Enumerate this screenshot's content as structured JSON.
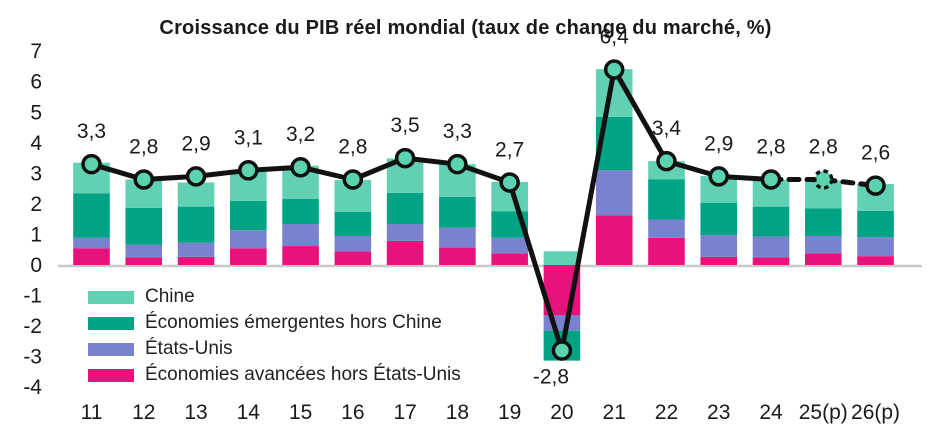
{
  "title": "Croissance du PIB réel mondial (taux de change du marché, %)",
  "colors": {
    "chine": "#62D0B2",
    "emergentes_hors_chine": "#00A383",
    "etats_unis": "#7A81CF",
    "avancees_hors_etats_unis": "#E8127D",
    "line": "#111111",
    "marker_fill": "#5BD2B0",
    "zero_axis": "#c9c9c9",
    "text": "#1a1a1a"
  },
  "chart_data": {
    "type": "bar",
    "subtype": "stacked-bar-with-line-overlay",
    "title": "Croissance du PIB réel mondial (taux de change du marché, %)",
    "xlabel": "",
    "ylabel": "",
    "ylim": [
      -4,
      7
    ],
    "y_ticks": [
      7,
      6,
      5,
      4,
      3,
      2,
      1,
      0,
      -1,
      -2,
      -3,
      -4
    ],
    "grid": false,
    "legend_position": "inside-bottom-left",
    "categories": [
      "11",
      "12",
      "13",
      "14",
      "15",
      "16",
      "17",
      "18",
      "19",
      "20",
      "21",
      "22",
      "23",
      "24",
      "25(p)",
      "26(p)"
    ],
    "line": {
      "name": "Croissance du PIB réel mondial",
      "values": [
        3.3,
        2.8,
        2.9,
        3.1,
        3.2,
        2.8,
        3.5,
        3.3,
        2.7,
        -2.8,
        6.4,
        3.4,
        2.9,
        2.8,
        2.8,
        2.6
      ],
      "labels": [
        "3,3",
        "2,8",
        "2,9",
        "3,1",
        "3,2",
        "2,8",
        "3,5",
        "3,3",
        "2,7",
        "-2,8",
        "6,4",
        "3,4",
        "2,9",
        "2,8",
        "2,8",
        "2,6"
      ],
      "dashed_from_index": 13,
      "dashed_marker_indices": [
        14
      ]
    },
    "series": [
      {
        "name": "Économies avancées hors États-Unis",
        "color": "#E8127D",
        "values": [
          0.55,
          0.25,
          0.27,
          0.55,
          0.62,
          0.44,
          0.79,
          0.57,
          0.38,
          -1.65,
          1.63,
          0.89,
          0.27,
          0.25,
          0.38,
          0.29
        ]
      },
      {
        "name": "États-Unis",
        "color": "#7A81CF",
        "values": [
          0.34,
          0.41,
          0.46,
          0.59,
          0.72,
          0.51,
          0.55,
          0.65,
          0.51,
          -0.5,
          1.47,
          0.6,
          0.71,
          0.68,
          0.57,
          0.62
        ]
      },
      {
        "name": "Économies émergentes hors Chine",
        "color": "#00A383",
        "values": [
          1.46,
          1.21,
          1.18,
          0.96,
          0.82,
          0.79,
          1.02,
          1.01,
          0.87,
          -0.98,
          1.75,
          1.31,
          1.06,
          0.98,
          0.9,
          0.86
        ]
      },
      {
        "name": "Chine",
        "color": "#62D0B2",
        "values": [
          1.0,
          0.93,
          0.79,
          0.95,
          1.09,
          1.04,
          1.13,
          1.07,
          0.96,
          0.45,
          1.56,
          0.6,
          0.87,
          0.87,
          0.91,
          0.88
        ]
      }
    ],
    "legend": [
      {
        "label": "Chine",
        "color": "#62D0B2"
      },
      {
        "label": "Économies émergentes hors Chine",
        "color": "#00A383"
      },
      {
        "label": "États-Unis",
        "color": "#7A81CF"
      },
      {
        "label": "Économies avancées hors États-Unis",
        "color": "#E8127D"
      }
    ]
  }
}
